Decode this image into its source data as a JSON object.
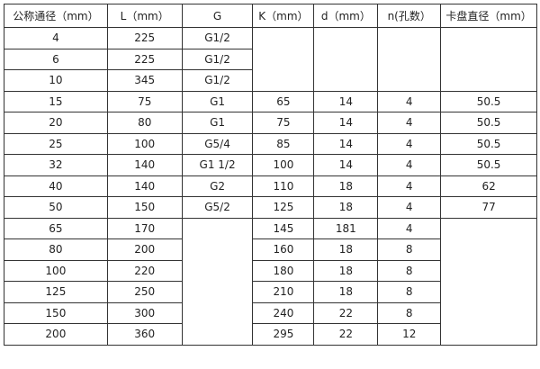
{
  "table": {
    "headers": [
      "公称通径（mm）",
      "L（mm）",
      "G",
      "K（mm）",
      "d（mm）",
      "n(孔数）",
      "卡盘直径（mm）"
    ],
    "rows": [
      [
        "4",
        "225",
        "G1/2",
        "",
        "",
        "",
        ""
      ],
      [
        "6",
        "225",
        "G1/2",
        null,
        null,
        null,
        null
      ],
      [
        "10",
        "345",
        "G1/2",
        null,
        null,
        null,
        null
      ],
      [
        "15",
        "75",
        "G1",
        "65",
        "14",
        "4",
        "50.5"
      ],
      [
        "20",
        "80",
        "G1",
        "75",
        "14",
        "4",
        "50.5"
      ],
      [
        "25",
        "100",
        "G5/4",
        "85",
        "14",
        "4",
        "50.5"
      ],
      [
        "32",
        "140",
        "G1  1/2",
        "100",
        "14",
        "4",
        "50.5"
      ],
      [
        "40",
        "140",
        "G2",
        "110",
        "18",
        "4",
        "62"
      ],
      [
        "50",
        "150",
        "G5/2",
        "125",
        "18",
        "4",
        "77"
      ],
      [
        "65",
        "170",
        "",
        "145",
        "181",
        "4",
        ""
      ],
      [
        "80",
        "200",
        null,
        "160",
        "18",
        "8",
        null
      ],
      [
        "100",
        "220",
        null,
        "180",
        "18",
        "8",
        null
      ],
      [
        "125",
        "250",
        null,
        "210",
        "18",
        "8",
        null
      ],
      [
        "150",
        "300",
        null,
        "240",
        "22",
        "8",
        null
      ],
      [
        "200",
        "360",
        null,
        "295",
        "22",
        "12",
        null
      ]
    ]
  }
}
